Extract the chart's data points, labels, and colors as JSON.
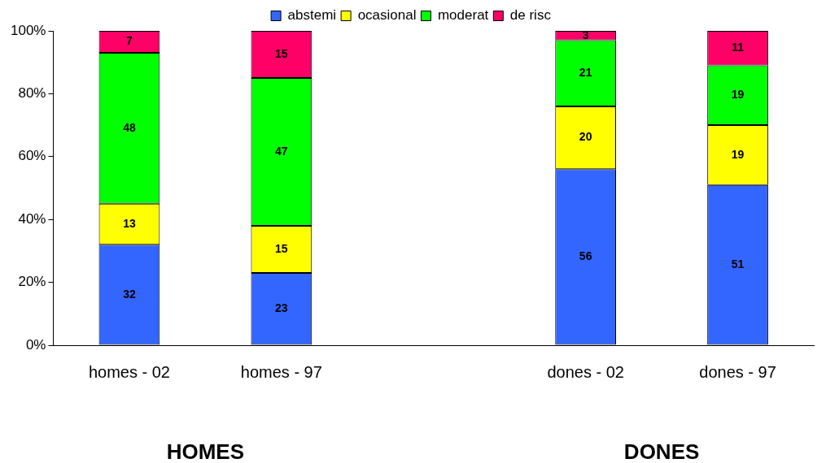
{
  "chart_data": {
    "type": "bar",
    "stacked": true,
    "categories": [
      "homes - 02",
      "homes - 97",
      null,
      "dones - 02",
      "dones - 97"
    ],
    "series": [
      {
        "name": "abstemi",
        "color": "#3366ff",
        "values": [
          32,
          23,
          null,
          56,
          51
        ]
      },
      {
        "name": "ocasional",
        "color": "#ffff00",
        "values": [
          13,
          15,
          null,
          20,
          19
        ]
      },
      {
        "name": "moderat",
        "color": "#00ff00",
        "values": [
          48,
          47,
          null,
          21,
          19
        ]
      },
      {
        "name": "de risc",
        "color": "#ff0066",
        "values": [
          7,
          15,
          null,
          3,
          11
        ]
      }
    ],
    "ylim": [
      0,
      100
    ],
    "yticks": [
      {
        "value": 0,
        "label": "0%"
      },
      {
        "value": 20,
        "label": "20%"
      },
      {
        "value": 40,
        "label": "40%"
      },
      {
        "value": 60,
        "label": "60%"
      },
      {
        "value": 80,
        "label": "80%"
      },
      {
        "value": 100,
        "label": "100%"
      }
    ],
    "grid": false,
    "legend": "top",
    "data_labels": true,
    "annotations": [
      "HOMES",
      "DONES"
    ]
  }
}
